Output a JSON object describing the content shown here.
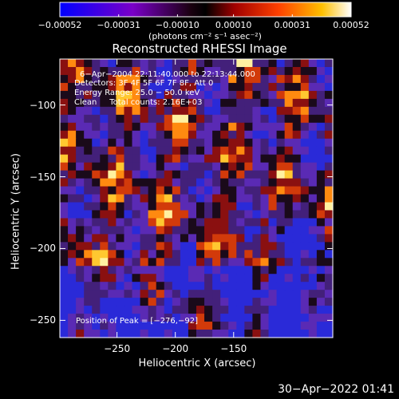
{
  "chart_data": {
    "type": "heatmap",
    "title": "Reconstructed RHESSI Image",
    "xlabel": "Heliocentric X (arcsec)",
    "ylabel": "Heliocentric Y (arcsec)",
    "xlim": [
      -299,
      -65
    ],
    "ylim": [
      -262,
      -68
    ],
    "x_ticks": [
      -250,
      -200,
      -150
    ],
    "x_tick_labels": [
      "−250",
      "−200",
      "−150"
    ],
    "y_ticks": [
      -100,
      -150,
      -200,
      -250
    ],
    "y_tick_labels": [
      "−100",
      "−150",
      "−200",
      "−250"
    ],
    "colorbar": {
      "range": [
        -0.00052,
        0.00052
      ],
      "ticks": [
        -0.00052,
        -0.00031,
        -0.0001,
        0.0001,
        0.00031,
        0.00052
      ],
      "tick_labels": [
        "−0.00052",
        "−0.00031",
        "−0.00010",
        "0.00010",
        "0.00031",
        "0.00052"
      ],
      "units": "(photons cm⁻² s⁻¹ asec⁻²)"
    },
    "annotations": [
      "6−Apr−2004 22:11:40.000 to 22:13:44.000",
      "Detectors: 3F 4F 5F 6F 7F 8F, Att 0",
      "Energy Range: 25.0 − 50.0 keV",
      "Clean     Total counts: 2.16E+03"
    ],
    "peak_label": "Position of Peak = [−276,−92]",
    "peak": [
      -276,
      -92
    ],
    "colors": {
      "background": "#000000",
      "text": "#ffffff"
    }
  },
  "timestamp": "30−Apr−2022 01:41"
}
